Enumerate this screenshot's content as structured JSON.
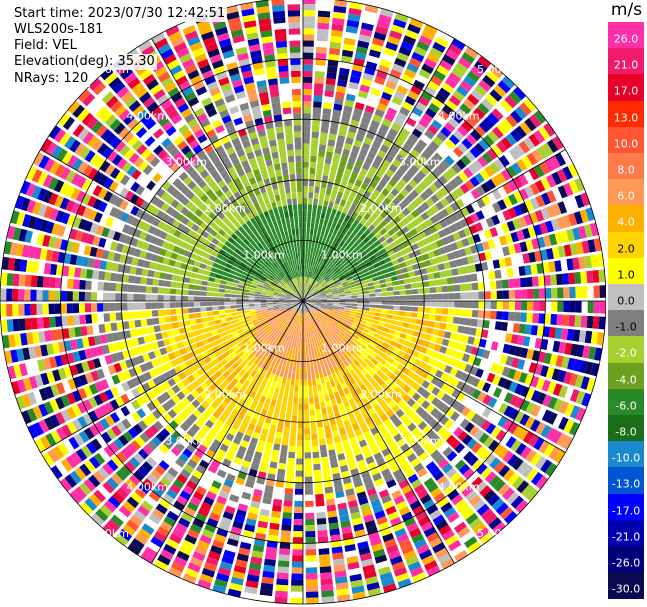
{
  "info": {
    "start_time": "Start time: 2023/07/30 12:42:51",
    "instrument": "WLS200s-181",
    "field": "Field: VEL",
    "elevation": "Elevation(deg): 35.30",
    "nrays": "NRays: 120"
  },
  "legend": {
    "unit": "m/s",
    "ticks": [
      "26.0",
      "21.0",
      "17.0",
      "13.0",
      "10.0",
      "8.0",
      "6.0",
      "4.0",
      "2.0",
      "1.0",
      "0.0",
      "-1.0",
      "-2.0",
      "-4.0",
      "-6.0",
      "-8.0",
      "-10.0",
      "-13.0",
      "-17.0",
      "-21.0",
      "-26.0",
      "-30.0"
    ],
    "colors": [
      "#ff2fa8",
      "#f01a6c",
      "#e8002a",
      "#ff2a00",
      "#ff5533",
      "#ff7a4a",
      "#ff9a55",
      "#ffb000",
      "#ffd400",
      "#ffff00",
      "#bfbfbf",
      "#7f7f7f",
      "#a8d030",
      "#6ea020",
      "#2a8a2a",
      "#1a6e1a",
      "#1a8acf",
      "#0055d4",
      "#0000ff",
      "#0000b0",
      "#00007a",
      "#0a0a50"
    ]
  },
  "chart_data": {
    "type": "polar_ppi",
    "field": "VEL",
    "units": "m/s",
    "nrays": 120,
    "elevation_deg": 35.3,
    "range_ring_labels": [
      "1.00km",
      "2.00km",
      "3.00km",
      "4.00km",
      "5.00km"
    ],
    "max_range_km": 5.0,
    "colormap_levels": [
      -30.0,
      -26.0,
      -21.0,
      -17.0,
      -13.0,
      -10.0,
      -8.0,
      -6.0,
      -4.0,
      -2.0,
      -1.0,
      0.0,
      1.0,
      2.0,
      4.0,
      6.0,
      8.0,
      10.0,
      13.0,
      17.0,
      21.0,
      26.0
    ]
  }
}
